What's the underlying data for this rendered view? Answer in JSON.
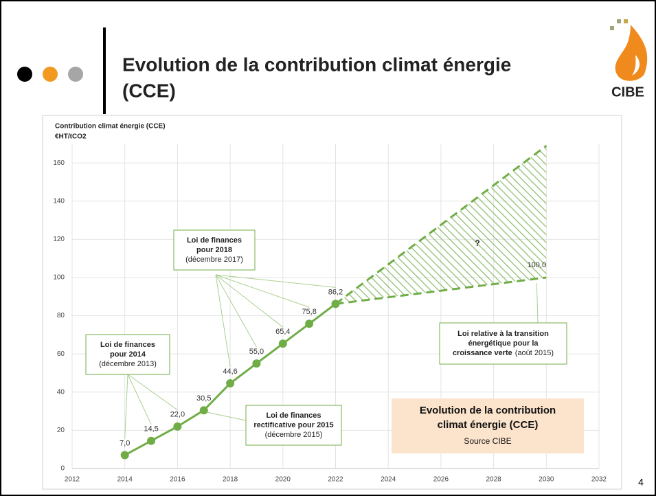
{
  "slide": {
    "title_lines": [
      "Evolution de la contribution climat énergie",
      "(CCE)"
    ],
    "logo": "CIBE",
    "page_number": "4"
  },
  "chart_data": {
    "type": "line",
    "y_axis_title": [
      "Contribution climat énergie (CCE)",
      "€HT/tCO2"
    ],
    "xlim": [
      2012,
      2032
    ],
    "xticks": [
      2012,
      2014,
      2016,
      2018,
      2020,
      2022,
      2024,
      2026,
      2028,
      2030,
      2032
    ],
    "ylim": [
      0,
      170
    ],
    "yticks": [
      0,
      20,
      40,
      60,
      80,
      100,
      120,
      140,
      160
    ],
    "grid": true,
    "series": [
      {
        "color": "#70ad47",
        "dashed": false,
        "x": [
          2014,
          2015,
          2016,
          2017,
          2018,
          2019,
          2020,
          2021,
          2022
        ],
        "values": [
          7.0,
          14.5,
          22.0,
          30.5,
          44.6,
          55.0,
          65.4,
          75.8,
          86.2
        ],
        "value_labels": [
          "7,0",
          "14,5",
          "22,0",
          "30,5",
          "44,6",
          "55,0",
          "65,4",
          "75,8",
          "86,2"
        ]
      },
      {
        "color": "#70ad47",
        "dashed": true,
        "x": [
          2022,
          2030
        ],
        "values": [
          86.2,
          100.0
        ],
        "value_labels": [
          null,
          "100,0"
        ]
      },
      {
        "color": "#70ad47",
        "dashed": true,
        "x": [
          2022,
          2030
        ],
        "values": [
          86.2,
          169
        ]
      }
    ],
    "hatch_label": "?",
    "annotations": [
      {
        "lines": [
          "Loi de finances",
          "pour 2014"
        ],
        "date": "(décembre 2013)"
      },
      {
        "lines": [
          "Loi de finances",
          "pour 2018"
        ],
        "date": "(décembre 2017)"
      },
      {
        "lines": [
          "Loi de finances",
          "rectificative pour 2015"
        ],
        "date": "(décembre 2015)"
      },
      {
        "lines": [
          "Loi relative à la transition",
          "énergétique pour la",
          "croissance verte"
        ],
        "date": "(août 2015)"
      }
    ],
    "source_box": {
      "lines": [
        "Evolution de la contribution",
        "climat énergie (CCE)"
      ],
      "source": "Source CIBE"
    }
  }
}
